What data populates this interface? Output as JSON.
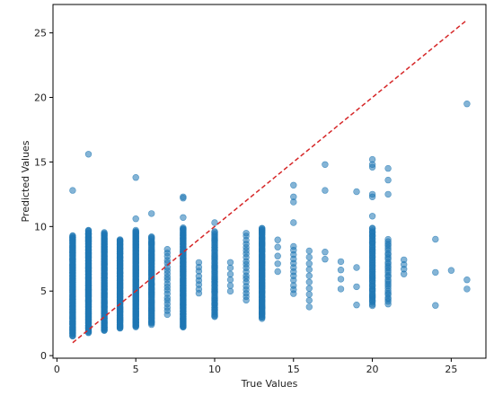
{
  "chart_data": {
    "type": "scatter",
    "title": "",
    "xlabel": "True Values",
    "ylabel": "Predicted Values",
    "xlim": [
      -0.25,
      27.2
    ],
    "ylim": [
      -0.2,
      27.2
    ],
    "xticks": [
      0,
      5,
      10,
      15,
      20,
      25
    ],
    "yticks": [
      0,
      5,
      10,
      15,
      20,
      25
    ],
    "grid": false,
    "point_color": "#1f77b4",
    "point_alpha": 0.55,
    "reference_line": {
      "style": "dashed",
      "color": "#d62728",
      "from": [
        1,
        1
      ],
      "to": [
        26,
        26
      ]
    },
    "columns": [
      {
        "x": 1,
        "ymin": 1.5,
        "ymax": 9.3,
        "n": 160,
        "extra": [
          12.8
        ]
      },
      {
        "x": 2,
        "ymin": 1.8,
        "ymax": 9.7,
        "n": 160,
        "extra": [
          15.6
        ]
      },
      {
        "x": 3,
        "ymin": 1.9,
        "ymax": 9.5,
        "n": 150
      },
      {
        "x": 4,
        "ymin": 2.1,
        "ymax": 9.0,
        "n": 140
      },
      {
        "x": 5,
        "ymin": 2.2,
        "ymax": 9.7,
        "n": 150,
        "extra": [
          10.6,
          13.8
        ]
      },
      {
        "x": 6,
        "ymin": 2.4,
        "ymax": 9.2,
        "n": 90,
        "extra": [
          11.0
        ]
      },
      {
        "x": 7,
        "ymin": 3.2,
        "ymax": 8.2,
        "n": 20
      },
      {
        "x": 8,
        "ymin": 2.2,
        "ymax": 9.9,
        "n": 160,
        "extra": [
          10.7,
          12.2,
          12.3
        ]
      },
      {
        "x": 9,
        "ymin": 4.8,
        "ymax": 7.2,
        "n": 8
      },
      {
        "x": 10,
        "ymin": 3.0,
        "ymax": 9.6,
        "n": 70,
        "extra": [
          10.3
        ]
      },
      {
        "x": 11,
        "ymin": 5.0,
        "ymax": 7.2,
        "n": 6
      },
      {
        "x": 12,
        "ymin": 4.3,
        "ymax": 9.5,
        "n": 20
      },
      {
        "x": 13,
        "ymin": 2.9,
        "ymax": 9.9,
        "n": 120
      },
      {
        "x": 14,
        "ymin": 6.5,
        "ymax": 9.0,
        "n": 5
      },
      {
        "x": 15,
        "ymin": 4.8,
        "ymax": 8.5,
        "n": 12,
        "extra": [
          10.3,
          11.9,
          12.3,
          13.2
        ]
      },
      {
        "x": 16,
        "ymin": 3.8,
        "ymax": 8.1,
        "n": 10
      },
      {
        "x": 17,
        "ymin": 7.5,
        "ymax": 8.0,
        "n": 2,
        "extra": [
          12.8,
          14.8
        ]
      },
      {
        "x": 18,
        "ymin": 5.2,
        "ymax": 7.3,
        "n": 4
      },
      {
        "x": 19,
        "ymin": 3.9,
        "ymax": 6.8,
        "n": 3,
        "extra": [
          12.7
        ]
      },
      {
        "x": 20,
        "ymin": 3.9,
        "ymax": 9.9,
        "n": 60,
        "extra": [
          10.8,
          12.3,
          12.5,
          14.6,
          14.8,
          15.2
        ]
      },
      {
        "x": 21,
        "ymin": 4.0,
        "ymax": 9.0,
        "n": 30,
        "extra": [
          12.5,
          13.6,
          14.5
        ]
      },
      {
        "x": 22,
        "ymin": 6.3,
        "ymax": 7.4,
        "n": 4
      },
      {
        "x": 24,
        "ymin": 3.9,
        "ymax": 9.0,
        "n": 3
      },
      {
        "x": 25,
        "ymin": 6.6,
        "ymax": 6.6,
        "n": 1
      },
      {
        "x": 26,
        "ymin": 5.2,
        "ymax": 5.9,
        "n": 2,
        "extra": [
          19.5
        ]
      }
    ]
  }
}
